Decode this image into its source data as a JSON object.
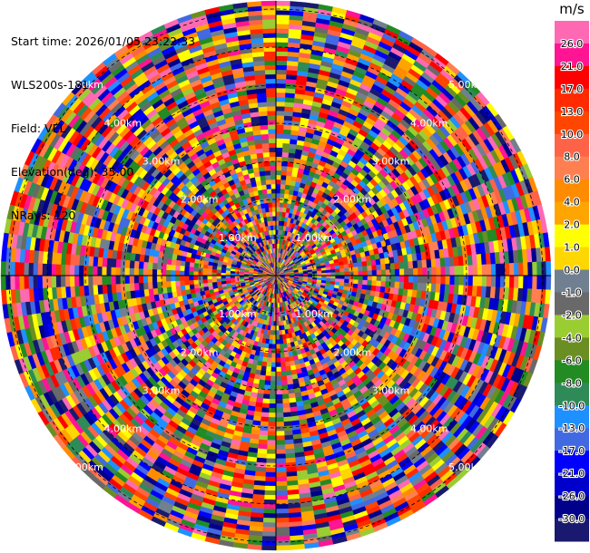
{
  "info": {
    "start_time": "Start time: 2026/01/05 23:22:33",
    "site": "WLS200s-181",
    "field": "Field: VEL",
    "elevation": "Elevation(deg): 35.00",
    "nrays": "NRays: 120"
  },
  "chart_data": {
    "type": "heatmap",
    "projection": "polar (PPI)",
    "field": "VEL",
    "unit": "m/s",
    "n_rays": 120,
    "range_labels": [
      "1.00km",
      "2.00km",
      "3.00km",
      "4.00km",
      "5.00km"
    ],
    "range_label_directions": [
      "NE",
      "NW",
      "SE",
      "SW"
    ],
    "colorbar": {
      "unit_label": "m/s",
      "ticks": [
        "26.0",
        "21.0",
        "17.0",
        "13.0",
        "10.0",
        "8.0",
        "6.0",
        "4.0",
        "2.0",
        "1.0",
        "0.0",
        "-1.0",
        "-2.0",
        "-4.0",
        "-6.0",
        "-8.0",
        "-10.0",
        "-13.0",
        "-17.0",
        "-21.0",
        "-26.0",
        "-30.0"
      ],
      "colors": [
        "#ff69b4",
        "#ff1493",
        "#ff0000",
        "#ff2a00",
        "#ff4500",
        "#ff6347",
        "#ff7f50",
        "#ff8c00",
        "#ffa500",
        "#ffff00",
        "#ffd700",
        "#708090",
        "#696969",
        "#9acd32",
        "#6b8e23",
        "#228b22",
        "#2e8b57",
        "#1e90ff",
        "#4169e1",
        "#0000ff",
        "#0000cd",
        "#00008b",
        "#191970"
      ]
    }
  }
}
